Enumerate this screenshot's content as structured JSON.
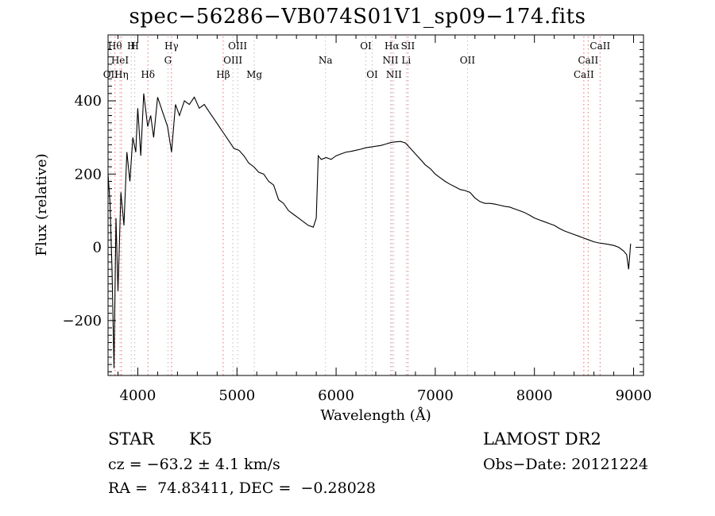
{
  "chart_data": {
    "type": "line",
    "title": "spec−56286−VB074S01V1_sp09−174.fits",
    "xlabel": "Wavelength (Å)",
    "ylabel": "Flux (relative)",
    "xlim": [
      3700,
      9100
    ],
    "ylim": [
      -350,
      580
    ],
    "xticks": [
      4000,
      5000,
      6000,
      7000,
      8000,
      9000
    ],
    "xtick_labels": [
      "4000",
      "5000",
      "6000",
      "7000",
      "8000",
      "9000"
    ],
    "yticks": [
      -200,
      0,
      200,
      400
    ],
    "ytick_labels": [
      "−200",
      "0",
      "200",
      "400"
    ],
    "grid": false,
    "series": [
      {
        "color": "#000000",
        "x": [
          3700,
          3720,
          3740,
          3760,
          3780,
          3800,
          3830,
          3860,
          3890,
          3920,
          3950,
          3980,
          4000,
          4030,
          4060,
          4100,
          4130,
          4160,
          4200,
          4250,
          4300,
          4340,
          4380,
          4420,
          4470,
          4520,
          4570,
          4620,
          4670,
          4720,
          4770,
          4820,
          4870,
          4920,
          4970,
          5020,
          5070,
          5120,
          5170,
          5220,
          5270,
          5320,
          5370,
          5420,
          5470,
          5520,
          5570,
          5620,
          5670,
          5720,
          5770,
          5800,
          5820,
          5850,
          5900,
          5950,
          6000,
          6050,
          6100,
          6150,
          6200,
          6250,
          6300,
          6350,
          6400,
          6450,
          6500,
          6550,
          6600,
          6650,
          6700,
          6750,
          6800,
          6850,
          6900,
          6950,
          7000,
          7050,
          7100,
          7150,
          7200,
          7250,
          7300,
          7350,
          7400,
          7450,
          7500,
          7550,
          7600,
          7650,
          7700,
          7750,
          7800,
          7850,
          7900,
          7950,
          8000,
          8050,
          8100,
          8150,
          8200,
          8250,
          8300,
          8350,
          8400,
          8450,
          8500,
          8550,
          8600,
          8650,
          8700,
          8750,
          8800,
          8850,
          8900,
          8930,
          8950,
          8970
        ],
        "y": [
          200,
          120,
          -60,
          -330,
          80,
          -120,
          150,
          60,
          260,
          180,
          300,
          260,
          380,
          250,
          420,
          330,
          360,
          300,
          410,
          370,
          330,
          260,
          390,
          360,
          400,
          390,
          410,
          380,
          390,
          370,
          350,
          330,
          310,
          290,
          270,
          265,
          250,
          230,
          220,
          205,
          200,
          180,
          170,
          130,
          120,
          100,
          90,
          80,
          70,
          60,
          55,
          80,
          250,
          240,
          245,
          240,
          250,
          255,
          260,
          262,
          265,
          268,
          272,
          274,
          276,
          278,
          282,
          286,
          288,
          289,
          285,
          270,
          255,
          240,
          225,
          215,
          200,
          190,
          180,
          172,
          165,
          158,
          155,
          150,
          135,
          125,
          120,
          120,
          118,
          115,
          112,
          110,
          105,
          100,
          95,
          88,
          80,
          75,
          70,
          65,
          60,
          52,
          45,
          40,
          35,
          30,
          25,
          20,
          15,
          12,
          10,
          8,
          5,
          0,
          -10,
          -20,
          -60,
          10
        ]
      }
    ],
    "lines": [
      {
        "wl": 3727,
        "label": "OII",
        "row": 3,
        "color": "#bdbdbd"
      },
      {
        "wl": 3770,
        "label": "Hθ",
        "row": 1,
        "color": "#ff6666"
      },
      {
        "wl": 3820,
        "label": "HeI",
        "row": 2,
        "color": "#bdbdbd"
      },
      {
        "wl": 3835,
        "label": "Hη",
        "row": 3,
        "color": "#ff6666"
      },
      {
        "wl": 3934,
        "label": "H",
        "row": 1,
        "color": "#bdbdbd"
      },
      {
        "wl": 3969,
        "label": "H",
        "row": 1,
        "color": "#bdbdbd"
      },
      {
        "wl": 4102,
        "label": "Hδ",
        "row": 3,
        "color": "#ff6666"
      },
      {
        "wl": 4304,
        "label": "G",
        "row": 2,
        "color": "#bdbdbd"
      },
      {
        "wl": 4340,
        "label": "Hγ",
        "row": 1,
        "color": "#ff6666"
      },
      {
        "wl": 4861,
        "label": "Hβ",
        "row": 3,
        "color": "#ff6666"
      },
      {
        "wl": 4959,
        "label": "OIII",
        "row": 2,
        "color": "#bdbdbd"
      },
      {
        "wl": 5007,
        "label": "OIII",
        "row": 1,
        "color": "#bdbdbd"
      },
      {
        "wl": 5175,
        "label": "Mg",
        "row": 3,
        "color": "#bdbdbd"
      },
      {
        "wl": 5893,
        "label": "Na",
        "row": 2,
        "color": "#bdbdbd"
      },
      {
        "wl": 6300,
        "label": "OI",
        "row": 1,
        "color": "#bdbdbd"
      },
      {
        "wl": 6364,
        "label": "OI",
        "row": 3,
        "color": "#bdbdbd"
      },
      {
        "wl": 6548,
        "label": "NII",
        "row": 2,
        "color": "#bdbdbd"
      },
      {
        "wl": 6563,
        "label": "Hα",
        "row": 1,
        "color": "#ff6666"
      },
      {
        "wl": 6583,
        "label": "NII",
        "row": 3,
        "color": "#bdbdbd"
      },
      {
        "wl": 6707,
        "label": "Li",
        "row": 2,
        "color": "#bdbdbd"
      },
      {
        "wl": 6724,
        "label": "SII",
        "row": 1,
        "color": "#ff6666"
      },
      {
        "wl": 7325,
        "label": "OII",
        "row": 2,
        "color": "#bdbdbd"
      },
      {
        "wl": 8498,
        "label": "CaII",
        "row": 3,
        "color": "#ff6666"
      },
      {
        "wl": 8542,
        "label": "CaII",
        "row": 2,
        "color": "#ff6666"
      },
      {
        "wl": 8662,
        "label": "CaII",
        "row": 1,
        "color": "#ff6666"
      }
    ]
  },
  "info": {
    "class_label": "STAR",
    "subclass": "K5",
    "survey": "LAMOST DR2",
    "cz": "cz = −63.2 ± 4.1 km/s",
    "obs_date": "Obs−Date: 20121224",
    "coords": "RA =  74.83411, DEC =  −0.28028"
  }
}
